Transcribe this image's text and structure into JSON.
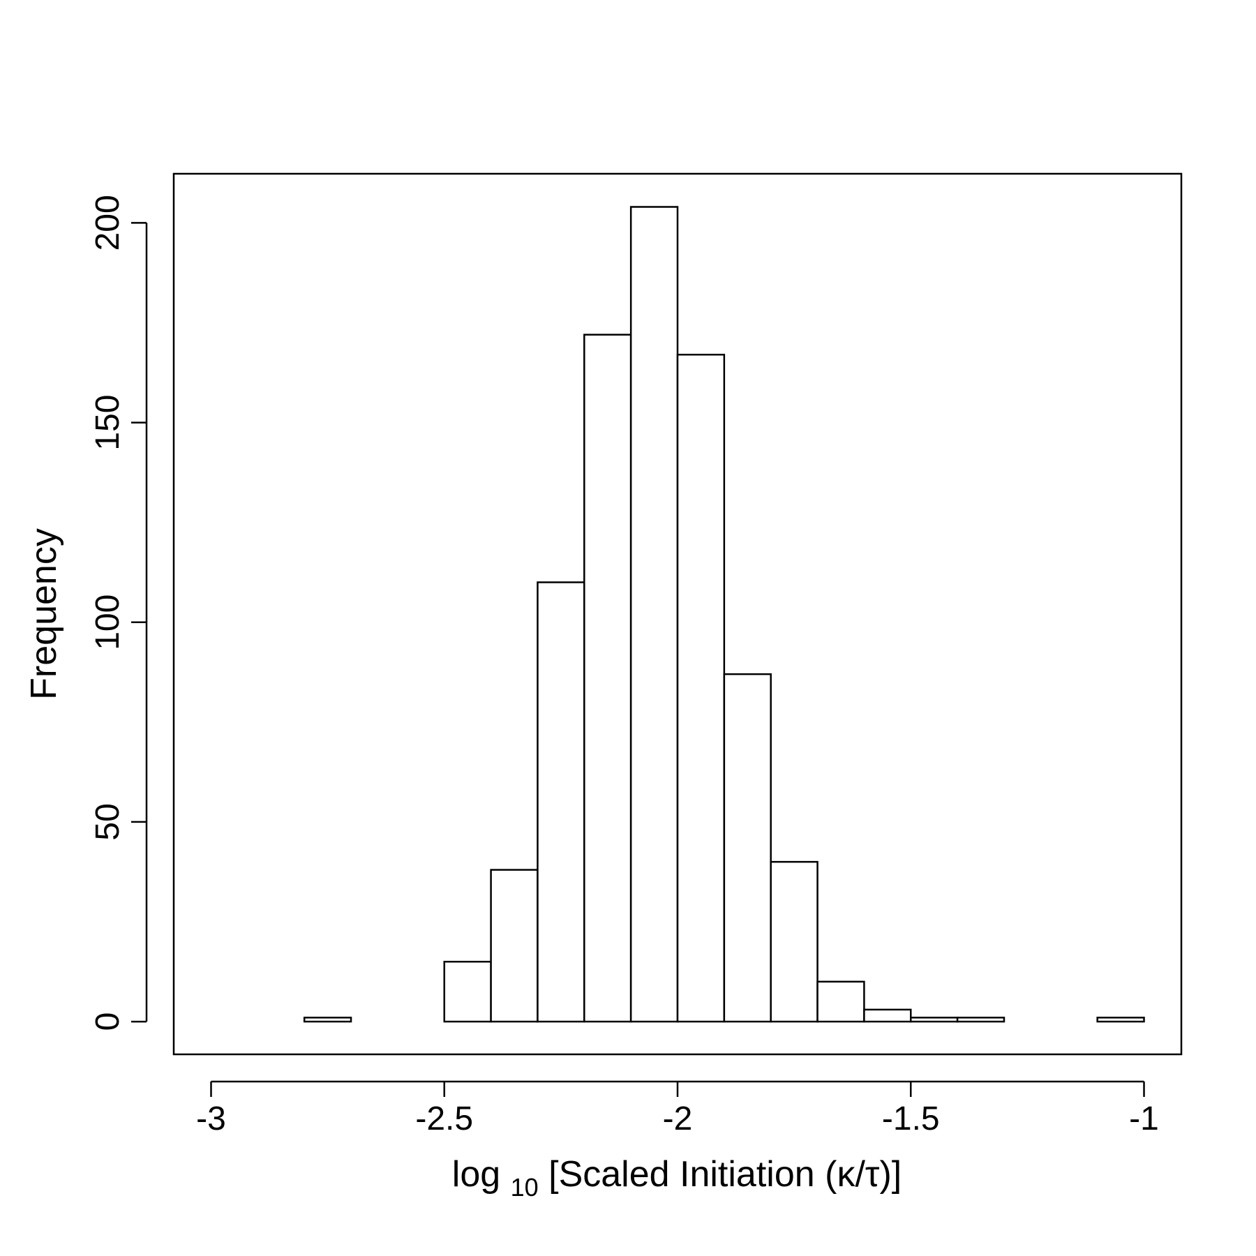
{
  "chart_data": {
    "type": "bar",
    "title": "",
    "xlabel": {
      "prefix": "log",
      "subscript": "10",
      "suffix": " [Scaled Initiation (κ/τ)]"
    },
    "ylabel": "Frequency",
    "xlim": [
      -3.08,
      -0.92
    ],
    "ylim": [
      -8.2,
      212.3
    ],
    "x_ticks": [
      -3,
      -2.5,
      -2,
      -1.5,
      -1
    ],
    "x_tick_labels": [
      "-3",
      "-2.5",
      "-2",
      "-1.5",
      "-1"
    ],
    "y_ticks": [
      0,
      50,
      100,
      150,
      200
    ],
    "y_tick_labels": [
      "0",
      "50",
      "100",
      "150",
      "200"
    ],
    "bin_edges": [
      -3.0,
      -2.9,
      -2.8,
      -2.7,
      -2.6,
      -2.5,
      -2.4,
      -2.3,
      -2.2,
      -2.1,
      -2.0,
      -1.9,
      -1.8,
      -1.7,
      -1.6,
      -1.5,
      -1.4,
      -1.3,
      -1.2,
      -1.1,
      -1.0
    ],
    "counts": [
      0,
      0,
      1,
      0,
      0,
      15,
      38,
      110,
      172,
      204,
      167,
      87,
      40,
      10,
      3,
      1,
      1,
      0,
      0,
      1
    ],
    "grid": false,
    "legend": "none",
    "colors": {
      "bar_fill": "#ffffff",
      "bar_stroke": "#000000",
      "axis": "#000000",
      "background": "#ffffff"
    }
  }
}
